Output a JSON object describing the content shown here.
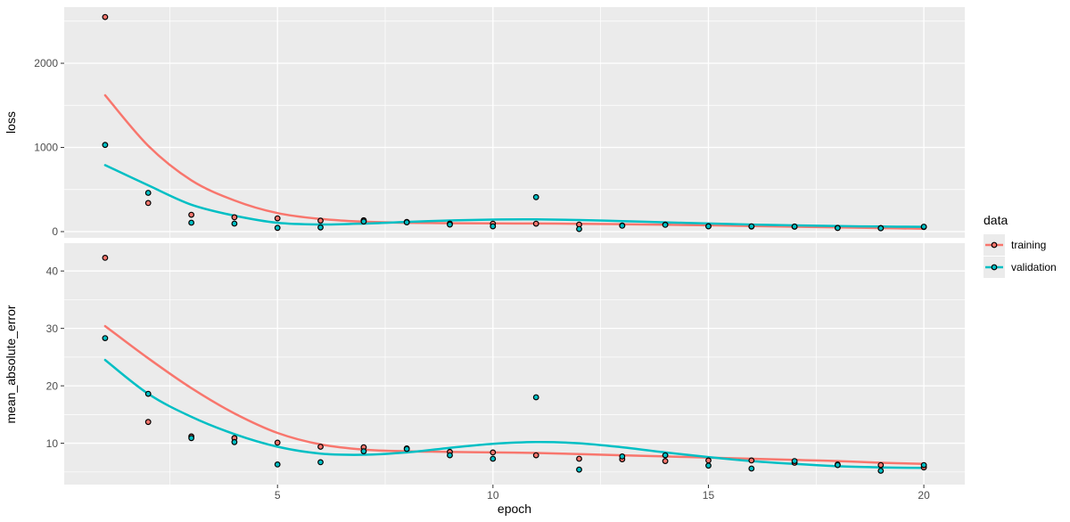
{
  "figure": {
    "background": "#FFFFFF",
    "panel_fill": "#EBEBEB",
    "grid_color": "#FFFFFF",
    "axis_text_color": "#4D4D4D",
    "tick_mark_color": "#333333",
    "point_stroke": "#000000",
    "legend_key_fill": "#EBEBEB"
  },
  "legend": {
    "title": "data",
    "position": "right",
    "items": [
      {
        "label": "training",
        "color": "#F8766D"
      },
      {
        "label": "validation",
        "color": "#00BFC4"
      }
    ]
  },
  "chart_data": [
    {
      "type": "scatter",
      "title": "loss",
      "xlabel": "epoch",
      "ylabel": "loss",
      "grid": true,
      "xlim": [
        0.05,
        20.95
      ],
      "ylim": [
        -74,
        2667
      ],
      "xticks": [
        5,
        10,
        15,
        20
      ],
      "yticks": [
        0,
        1000,
        2000
      ],
      "x": [
        1,
        2,
        3,
        4,
        5,
        6,
        7,
        8,
        9,
        10,
        11,
        12,
        13,
        14,
        15,
        16,
        17,
        18,
        19,
        20
      ],
      "series": [
        {
          "name": "training",
          "color": "#F8766D",
          "values": [
            2550,
            340,
            200,
            170,
            158,
            130,
            135,
            115,
            95,
            94,
            94,
            84,
            73,
            84,
            65,
            60,
            58,
            45,
            42,
            55
          ]
        },
        {
          "name": "validation",
          "color": "#00BFC4",
          "values": [
            1030,
            460,
            106,
            95,
            45,
            50,
            120,
            110,
            84,
            63,
            410,
            31,
            70,
            80,
            63,
            62,
            60,
            43,
            40,
            58
          ]
        }
      ],
      "smooth": [
        {
          "name": "training",
          "color": "#F8766D",
          "values": [
            1620,
            1020,
            610,
            370,
            220,
            150,
            118,
            105,
            100,
            98,
            96,
            93,
            88,
            82,
            75,
            67,
            58,
            50,
            42,
            35
          ]
        },
        {
          "name": "validation",
          "color": "#00BFC4",
          "values": [
            790,
            550,
            320,
            190,
            105,
            85,
            95,
            115,
            132,
            143,
            145,
            138,
            125,
            110,
            96,
            84,
            74,
            66,
            60,
            57
          ]
        }
      ]
    },
    {
      "type": "scatter",
      "title": "mean_absolute_error",
      "xlabel": "epoch",
      "ylabel": "mean_absolute_error",
      "grid": true,
      "xlim": [
        0.05,
        20.95
      ],
      "ylim": [
        2.8,
        44.84
      ],
      "xticks": [
        5,
        10,
        15,
        20
      ],
      "yticks": [
        10,
        20,
        30,
        40
      ],
      "x": [
        1,
        2,
        3,
        4,
        5,
        6,
        7,
        8,
        9,
        10,
        11,
        12,
        13,
        14,
        15,
        16,
        17,
        18,
        19,
        20
      ],
      "series": [
        {
          "name": "training",
          "color": "#F8766D",
          "values": [
            42.3,
            13.7,
            11.2,
            10.9,
            10.1,
            9.4,
            9.3,
            9.1,
            8.5,
            8.4,
            7.9,
            7.3,
            7.2,
            6.9,
            7.0,
            7.0,
            6.6,
            6.3,
            6.2,
            5.8
          ]
        },
        {
          "name": "validation",
          "color": "#00BFC4",
          "values": [
            28.3,
            18.6,
            10.9,
            10.2,
            6.3,
            6.7,
            8.6,
            9.0,
            7.9,
            7.3,
            18.0,
            5.4,
            7.7,
            7.9,
            6.1,
            5.6,
            6.9,
            6.2,
            5.2,
            6.2
          ]
        }
      ],
      "smooth": [
        {
          "name": "training",
          "color": "#F8766D",
          "values": [
            30.4,
            24.8,
            19.6,
            15.2,
            11.8,
            9.8,
            8.9,
            8.6,
            8.5,
            8.4,
            8.3,
            8.1,
            7.9,
            7.7,
            7.5,
            7.3,
            7.1,
            6.9,
            6.6,
            6.4
          ]
        },
        {
          "name": "validation",
          "color": "#00BFC4",
          "values": [
            24.5,
            18.6,
            14.6,
            11.6,
            9.4,
            8.2,
            8.0,
            8.4,
            9.2,
            9.9,
            10.2,
            10.0,
            9.3,
            8.4,
            7.6,
            6.9,
            6.4,
            6.0,
            5.8,
            5.7
          ]
        }
      ]
    }
  ]
}
